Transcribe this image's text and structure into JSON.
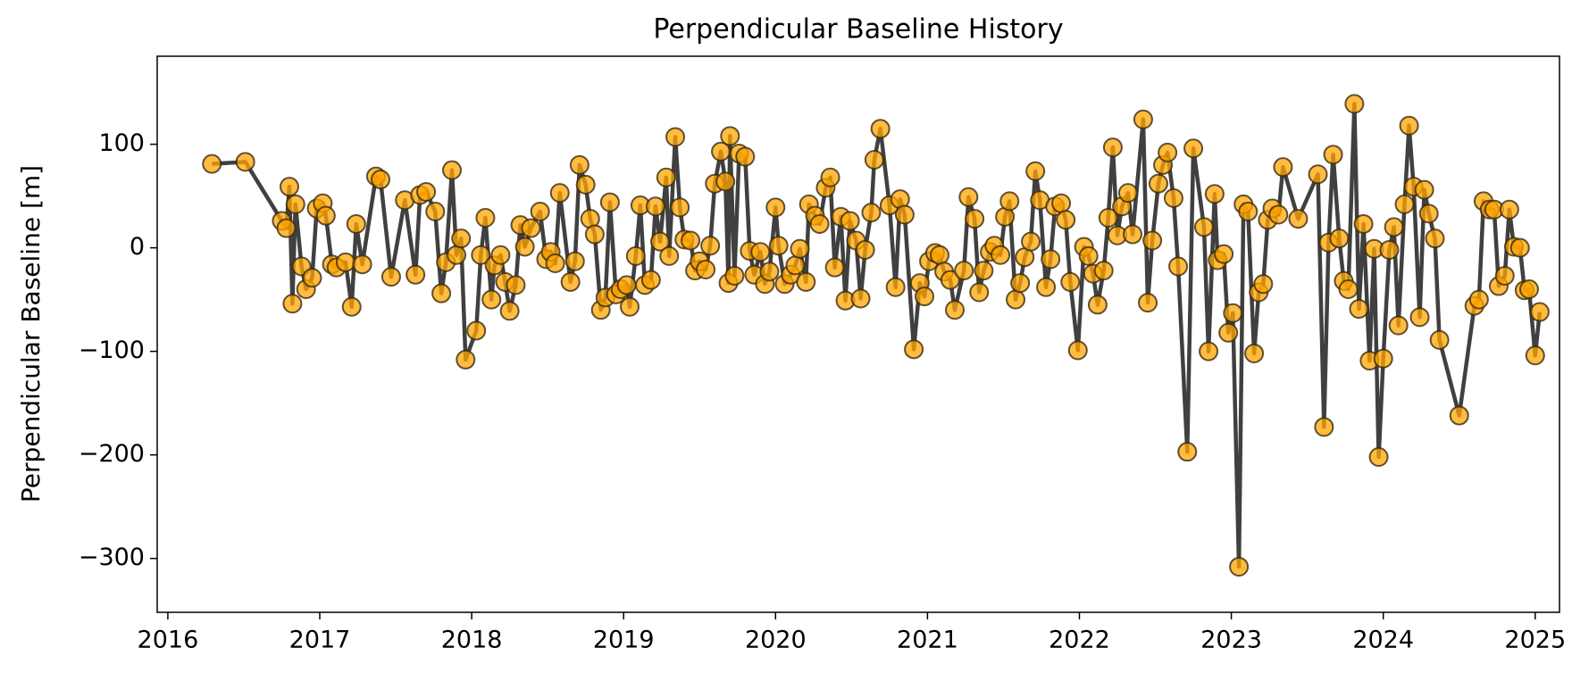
{
  "chart_data": {
    "type": "line",
    "title": "Perpendicular Baseline History",
    "ylabel": "Perpendicular Baseline [m]",
    "color": "#ffa500",
    "edge_color": "#3a2a10",
    "line_color": "#404040",
    "xlim": [
      2015.93,
      2025.16
    ],
    "xticks": [
      2016,
      2017,
      2018,
      2019,
      2020,
      2021,
      2022,
      2023,
      2024,
      2025
    ],
    "ylim": [
      -352,
      185
    ],
    "yticks": [
      {
        "value": -300,
        "label": "−300"
      },
      {
        "value": -200,
        "label": "−200"
      },
      {
        "value": -100,
        "label": "−100"
      },
      0,
      100
    ],
    "x": [
      2016.29,
      2016.51,
      2016.75,
      2016.78,
      2016.8,
      2016.82,
      2016.84,
      2016.88,
      2016.91,
      2016.95,
      2016.98,
      2017.02,
      2017.04,
      2017.08,
      2017.11,
      2017.17,
      2017.21,
      2017.24,
      2017.28,
      2017.37,
      2017.4,
      2017.47,
      2017.56,
      2017.63,
      2017.66,
      2017.7,
      2017.76,
      2017.8,
      2017.83,
      2017.87,
      2017.9,
      2017.93,
      2017.96,
      2018.03,
      2018.06,
      2018.09,
      2018.13,
      2018.15,
      2018.19,
      2018.22,
      2018.25,
      2018.29,
      2018.32,
      2018.35,
      2018.39,
      2018.45,
      2018.49,
      2018.52,
      2018.55,
      2018.58,
      2018.65,
      2018.68,
      2018.71,
      2018.75,
      2018.78,
      2018.81,
      2018.85,
      2018.88,
      2018.91,
      2018.95,
      2018.98,
      2019.02,
      2019.04,
      2019.08,
      2019.11,
      2019.14,
      2019.18,
      2019.21,
      2019.24,
      2019.28,
      2019.3,
      2019.34,
      2019.37,
      2019.4,
      2019.44,
      2019.47,
      2019.5,
      2019.54,
      2019.57,
      2019.6,
      2019.64,
      2019.67,
      2019.69,
      2019.7,
      2019.73,
      2019.76,
      2019.8,
      2019.83,
      2019.86,
      2019.9,
      2019.93,
      2019.96,
      2020.0,
      2020.02,
      2020.06,
      2020.1,
      2020.13,
      2020.16,
      2020.2,
      2020.22,
      2020.26,
      2020.29,
      2020.33,
      2020.36,
      2020.39,
      2020.43,
      2020.46,
      2020.49,
      2020.53,
      2020.56,
      2020.59,
      2020.63,
      2020.65,
      2020.69,
      2020.75,
      2020.79,
      2020.82,
      2020.85,
      2020.91,
      2020.95,
      2020.98,
      2021.01,
      2021.05,
      2021.08,
      2021.11,
      2021.15,
      2021.18,
      2021.24,
      2021.27,
      2021.31,
      2021.34,
      2021.37,
      2021.41,
      2021.44,
      2021.48,
      2021.51,
      2021.54,
      2021.58,
      2021.61,
      2021.64,
      2021.68,
      2021.71,
      2021.74,
      2021.78,
      2021.81,
      2021.84,
      2021.88,
      2021.91,
      2021.94,
      2021.99,
      2022.03,
      2022.06,
      2022.09,
      2022.12,
      2022.16,
      2022.19,
      2022.22,
      2022.25,
      2022.28,
      2022.32,
      2022.35,
      2022.42,
      2022.45,
      2022.48,
      2022.52,
      2022.55,
      2022.58,
      2022.62,
      2022.65,
      2022.71,
      2022.75,
      2022.82,
      2022.85,
      2022.89,
      2022.91,
      2022.95,
      2022.98,
      2023.01,
      2023.05,
      2023.08,
      2023.11,
      2023.15,
      2023.18,
      2023.21,
      2023.24,
      2023.27,
      2023.31,
      2023.34,
      2023.44,
      2023.57,
      2023.61,
      2023.64,
      2023.67,
      2023.71,
      2023.74,
      2023.77,
      2023.81,
      2023.84,
      2023.87,
      2023.91,
      2023.94,
      2023.97,
      2024.0,
      2024.04,
      2024.07,
      2024.1,
      2024.14,
      2024.17,
      2024.2,
      2024.24,
      2024.27,
      2024.3,
      2024.34,
      2024.37,
      2024.5,
      2024.6,
      2024.63,
      2024.66,
      2024.7,
      2024.73,
      2024.76,
      2024.8,
      2024.83,
      2024.86,
      2024.9,
      2024.93,
      2024.96,
      2025.0,
      2025.03
    ],
    "values": [
      81,
      83,
      26,
      19,
      59,
      -54,
      42,
      -18,
      -40,
      -29,
      38,
      43,
      31,
      -16,
      -19,
      -14,
      -57,
      23,
      -16,
      69,
      66,
      -28,
      46,
      -26,
      51,
      54,
      35,
      -44,
      -14,
      75,
      -7,
      9,
      -108,
      -80,
      -7,
      29,
      -50,
      -17,
      -7,
      -33,
      -61,
      -36,
      22,
      1,
      19,
      35,
      -11,
      -4,
      -15,
      53,
      -33,
      -13,
      80,
      61,
      28,
      13,
      -60,
      -48,
      44,
      -45,
      -40,
      -36,
      -57,
      -8,
      41,
      -36,
      -31,
      40,
      6,
      68,
      -8,
      107,
      39,
      8,
      7,
      -22,
      -13,
      -21,
      2,
      62,
      93,
      64,
      -34,
      108,
      -27,
      91,
      88,
      -3,
      -26,
      -4,
      -35,
      -23,
      39,
      2,
      -35,
      -26,
      -17,
      -1,
      -33,
      42,
      31,
      23,
      58,
      68,
      -19,
      30,
      -51,
      26,
      7,
      -49,
      -2,
      34,
      85,
      115,
      41,
      -38,
      47,
      32,
      -98,
      -34,
      -47,
      -13,
      -5,
      -7,
      -23,
      -31,
      -60,
      -22,
      49,
      28,
      -43,
      -22,
      -4,
      2,
      -7,
      30,
      45,
      -50,
      -34,
      -9,
      6,
      74,
      46,
      -38,
      -11,
      40,
      43,
      27,
      -33,
      -99,
      1,
      -8,
      -25,
      -55,
      -22,
      29,
      97,
      12,
      40,
      53,
      13,
      124,
      -53,
      7,
      62,
      80,
      92,
      48,
      -18,
      -197,
      96,
      20,
      -100,
      52,
      -12,
      -6,
      -82,
      -63,
      -308,
      42,
      35,
      -102,
      -43,
      -35,
      27,
      38,
      32,
      78,
      28,
      71,
      -173,
      5,
      90,
      9,
      -32,
      -40,
      139,
      -59,
      23,
      -109,
      -1,
      -202,
      -107,
      -2,
      20,
      -75,
      42,
      118,
      59,
      -67,
      56,
      33,
      9,
      -89,
      -162,
      -56,
      -50,
      45,
      37,
      37,
      -37,
      -27,
      37,
      1,
      0,
      -41,
      -40,
      -104,
      -62
    ]
  }
}
